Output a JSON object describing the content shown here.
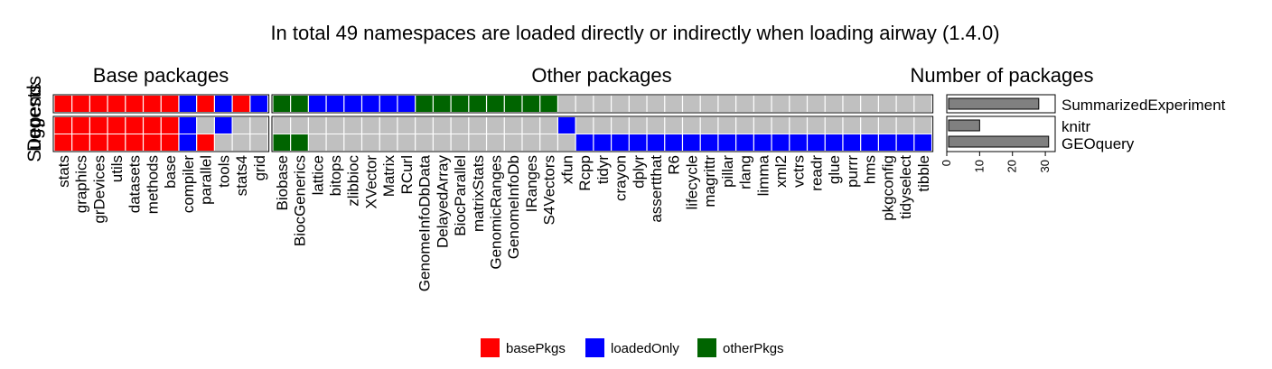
{
  "colors": {
    "basePkgs": "#FF0000",
    "loadedOnly": "#0000FF",
    "otherPkgs": "#006400",
    "none": "#C0C0C0",
    "bar": "#808080"
  },
  "chart_data": {
    "type": "heatmap",
    "title": "In total 49 namespaces are loaded directly or indirectly when loading airway (1.4.0)",
    "row_groups": [
      {
        "label": "Suggests",
        "rows": [
          "SummarizedExperiment"
        ]
      },
      {
        "label": "Depends",
        "rows": [
          "knitr",
          "GEOquery"
        ]
      }
    ],
    "panels": [
      {
        "title": "Base packages",
        "columns": [
          "stats",
          "graphics",
          "grDevices",
          "utils",
          "datasets",
          "methods",
          "base",
          "compiler",
          "parallel",
          "tools",
          "stats4",
          "grid"
        ]
      },
      {
        "title": "Other packages",
        "columns": [
          "Biobase",
          "BiocGenerics",
          "lattice",
          "bitops",
          "zlibbioc",
          "XVector",
          "Matrix",
          "RCurl",
          "GenomeInfoDbData",
          "DelayedArray",
          "BiocParallel",
          "matrixStats",
          "GenomicRanges",
          "GenomeInfoDb",
          "IRanges",
          "S4Vectors",
          "xfun",
          "Rcpp",
          "tidyr",
          "crayon",
          "dplyr",
          "assertthat",
          "R6",
          "lifecycle",
          "magrittr",
          "pillar",
          "rlang",
          "limma",
          "xml2",
          "vctrs",
          "readr",
          "glue",
          "purrr",
          "hms",
          "pkgconfig",
          "tidyselect",
          "tibble"
        ]
      }
    ],
    "cells": {
      "SummarizedExperiment": [
        "basePkgs",
        "basePkgs",
        "basePkgs",
        "basePkgs",
        "basePkgs",
        "basePkgs",
        "basePkgs",
        "loadedOnly",
        "basePkgs",
        "loadedOnly",
        "basePkgs",
        "loadedOnly",
        "otherPkgs",
        "otherPkgs",
        "loadedOnly",
        "loadedOnly",
        "loadedOnly",
        "loadedOnly",
        "loadedOnly",
        "loadedOnly",
        "otherPkgs",
        "otherPkgs",
        "otherPkgs",
        "otherPkgs",
        "otherPkgs",
        "otherPkgs",
        "otherPkgs",
        "otherPkgs",
        "none",
        "none",
        "none",
        "none",
        "none",
        "none",
        "none",
        "none",
        "none",
        "none",
        "none",
        "none",
        "none",
        "none",
        "none",
        "none",
        "none",
        "none",
        "none",
        "none",
        "none"
      ],
      "knitr": [
        "basePkgs",
        "basePkgs",
        "basePkgs",
        "basePkgs",
        "basePkgs",
        "basePkgs",
        "basePkgs",
        "loadedOnly",
        "none",
        "loadedOnly",
        "none",
        "none",
        "none",
        "none",
        "none",
        "none",
        "none",
        "none",
        "none",
        "none",
        "none",
        "none",
        "none",
        "none",
        "none",
        "none",
        "none",
        "none",
        "loadedOnly",
        "none",
        "none",
        "none",
        "none",
        "none",
        "none",
        "none",
        "none",
        "none",
        "none",
        "none",
        "none",
        "none",
        "none",
        "none",
        "none",
        "none",
        "none",
        "none",
        "none"
      ],
      "GEOquery": [
        "basePkgs",
        "basePkgs",
        "basePkgs",
        "basePkgs",
        "basePkgs",
        "basePkgs",
        "basePkgs",
        "loadedOnly",
        "basePkgs",
        "none",
        "none",
        "none",
        "otherPkgs",
        "otherPkgs",
        "none",
        "none",
        "none",
        "none",
        "none",
        "none",
        "none",
        "none",
        "none",
        "none",
        "none",
        "none",
        "none",
        "none",
        "none",
        "loadedOnly",
        "loadedOnly",
        "loadedOnly",
        "loadedOnly",
        "loadedOnly",
        "loadedOnly",
        "loadedOnly",
        "loadedOnly",
        "loadedOnly",
        "loadedOnly",
        "loadedOnly",
        "loadedOnly",
        "loadedOnly",
        "loadedOnly",
        "loadedOnly",
        "loadedOnly",
        "loadedOnly",
        "loadedOnly",
        "loadedOnly",
        "loadedOnly"
      ]
    },
    "bar_panel": {
      "title": "Number of packages",
      "rows": [
        "SummarizedExperiment",
        "knitr",
        "GEOquery"
      ],
      "values": [
        28,
        10,
        31
      ],
      "xlim": [
        0,
        33
      ],
      "xticks": [
        0,
        10,
        20,
        30
      ]
    },
    "legend": {
      "placement": "bottom",
      "items": [
        {
          "key": "basePkgs",
          "label": "basePkgs"
        },
        {
          "key": "loadedOnly",
          "label": "loadedOnly"
        },
        {
          "key": "otherPkgs",
          "label": "otherPkgs"
        }
      ]
    }
  }
}
